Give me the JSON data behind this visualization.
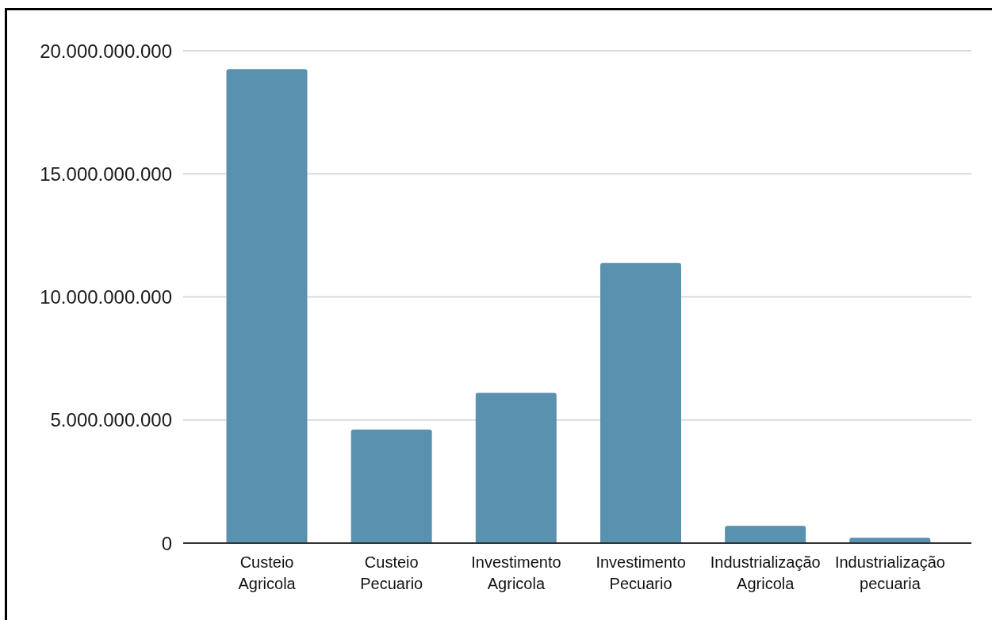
{
  "chart_data": {
    "type": "bar",
    "categories": [
      "Custeio Agricola",
      "Custeio Pecuario",
      "Investimento Agricola",
      "Investimento Pecuario",
      "Industrialização Agricola",
      "Industrialização pecuaria"
    ],
    "values": [
      19250000000,
      4610000000,
      6100000000,
      11380000000,
      700000000,
      220000000
    ],
    "color": "#5a91af",
    "ylim": [
      0,
      20000000000
    ],
    "yticks": [
      0,
      {
        "value": 5000000000,
        "label": "5.000.000.000"
      },
      {
        "value": 10000000000,
        "label": "10.000.000.000"
      },
      {
        "value": 15000000000,
        "label": "15.000.000.000"
      },
      {
        "value": 20000000000,
        "label": "20.000.000.000"
      }
    ],
    "grid": "y"
  }
}
